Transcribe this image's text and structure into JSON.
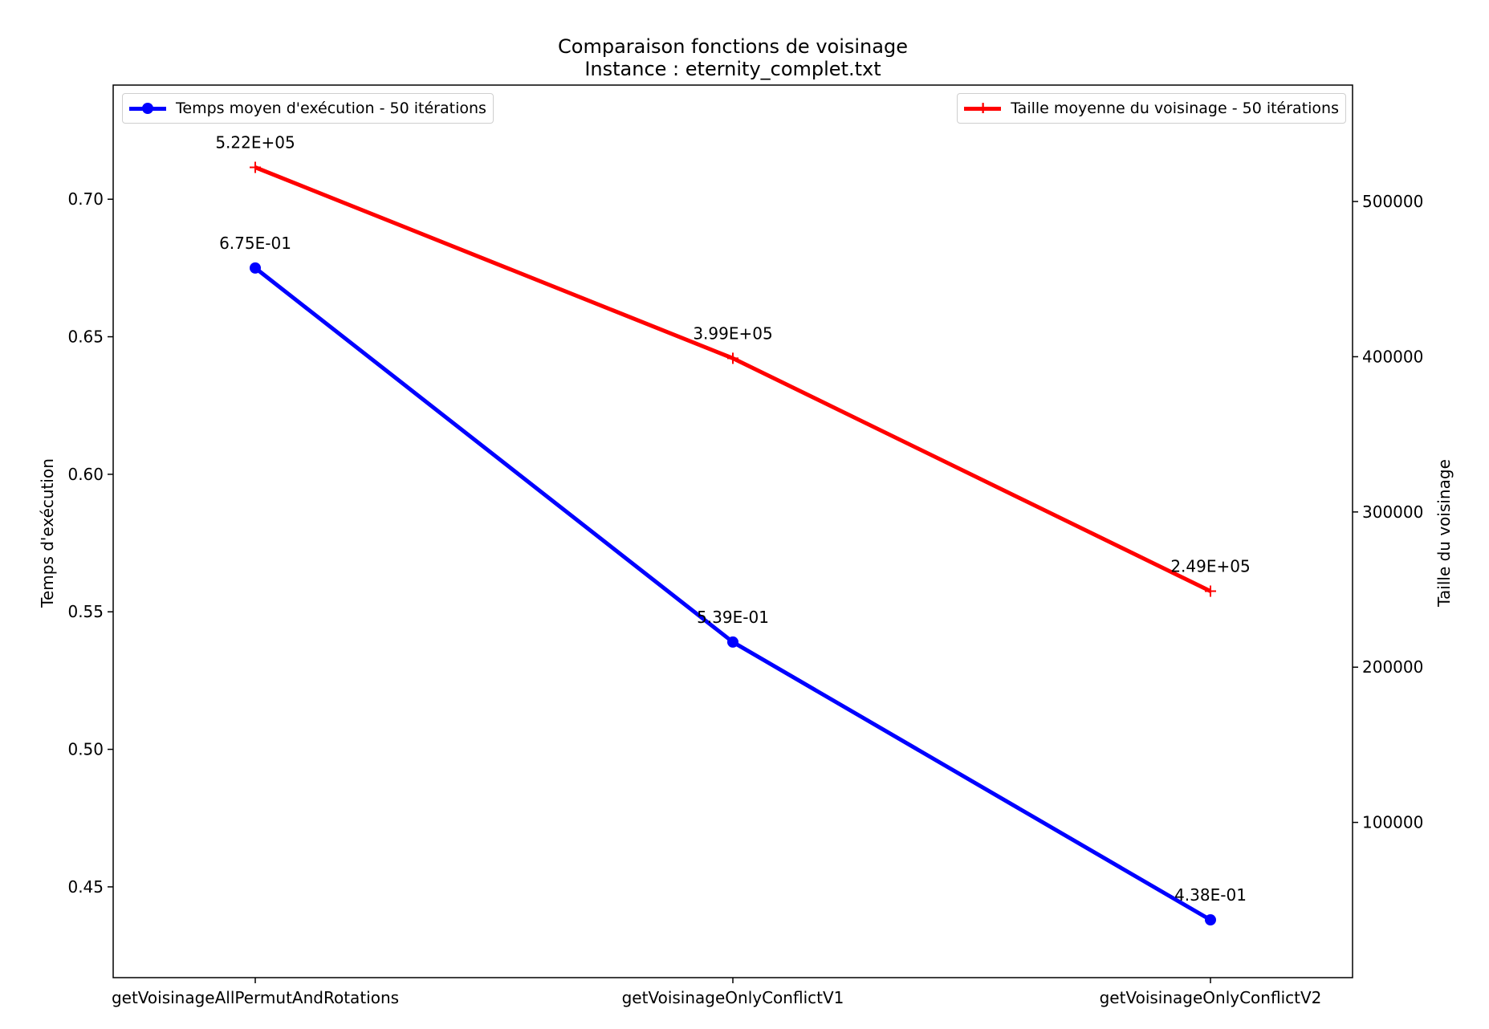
{
  "chart_data": {
    "type": "line",
    "title": "Comparaison fonctions de voisinage",
    "subtitle": "Instance : eternity_complet.txt",
    "categories": [
      "getVoisinageAllPermutAndRotations",
      "getVoisinageOnlyConflictV1",
      "getVoisinageOnlyConflictV2"
    ],
    "ylabel": "Temps d'exécution",
    "y2label": "Taille du voisinage",
    "ylim": [
      0.417,
      0.7415
    ],
    "y2lim": [
      0,
      575000
    ],
    "yticks": [
      0.45,
      0.5,
      0.55,
      0.6,
      0.65,
      0.7
    ],
    "ytick_labels": [
      "0.45",
      "0.50",
      "0.55",
      "0.60",
      "0.65",
      "0.70"
    ],
    "y2ticks": [
      100000,
      200000,
      300000,
      400000,
      500000
    ],
    "y2tick_labels": [
      "100000",
      "200000",
      "300000",
      "400000",
      "500000"
    ],
    "grid": false,
    "series": [
      {
        "name": "Temps moyen d'exécution - 50 itérations",
        "axis": "left",
        "color": "#0000ff",
        "marker": "circle",
        "values": [
          0.675,
          0.539,
          0.438
        ],
        "labels": [
          "6.75E-01",
          "5.39E-01",
          "4.38E-01"
        ],
        "legend_position": "upper left"
      },
      {
        "name": "Taille moyenne du voisinage - 50 itérations",
        "axis": "right",
        "color": "#ff0000",
        "marker": "plus",
        "values": [
          522000,
          399000,
          249000
        ],
        "labels": [
          "5.22E+05",
          "3.99E+05",
          "2.49E+05"
        ],
        "legend_position": "upper right"
      }
    ]
  }
}
